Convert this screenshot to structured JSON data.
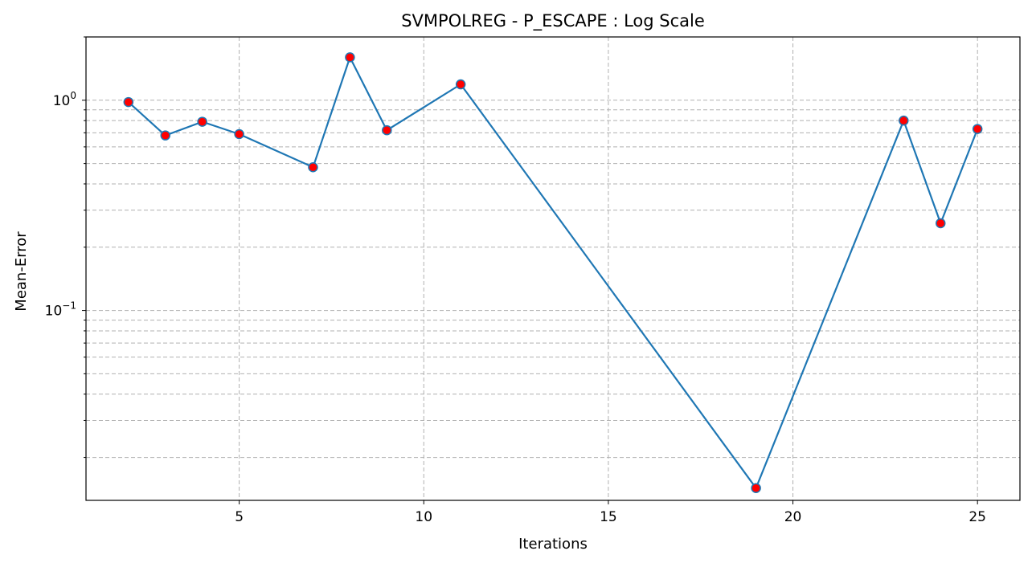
{
  "chart_data": {
    "type": "line",
    "title": "SVMPOLREG - P_ESCAPE : Log Scale",
    "xlabel": "Iterations",
    "ylabel": "Mean-Error",
    "yscale": "log",
    "xlim": [
      0.85,
      26.15
    ],
    "ylim": [
      0.0125,
      2.0
    ],
    "grid": "dashed, major and minor",
    "x_ticks": [
      5,
      10,
      15,
      20,
      25
    ],
    "x_tick_labels": [
      "5",
      "10",
      "15",
      "20",
      "25"
    ],
    "y_ticks": [
      0.1,
      1
    ],
    "y_tick_labels": [
      {
        "base": "10",
        "exp": "−1"
      },
      {
        "base": "10",
        "exp": "0"
      }
    ],
    "series": [
      {
        "line_color": "#1f77b4",
        "marker_face": "#ff0000",
        "marker_edge": "#1f77b4",
        "x": [
          2,
          3,
          4,
          5,
          7,
          8,
          9,
          11,
          19,
          23,
          24,
          25
        ],
        "y": [
          0.98,
          0.68,
          0.79,
          0.69,
          0.48,
          1.6,
          0.72,
          1.19,
          0.0143,
          0.8,
          0.26,
          0.73
        ]
      }
    ]
  }
}
